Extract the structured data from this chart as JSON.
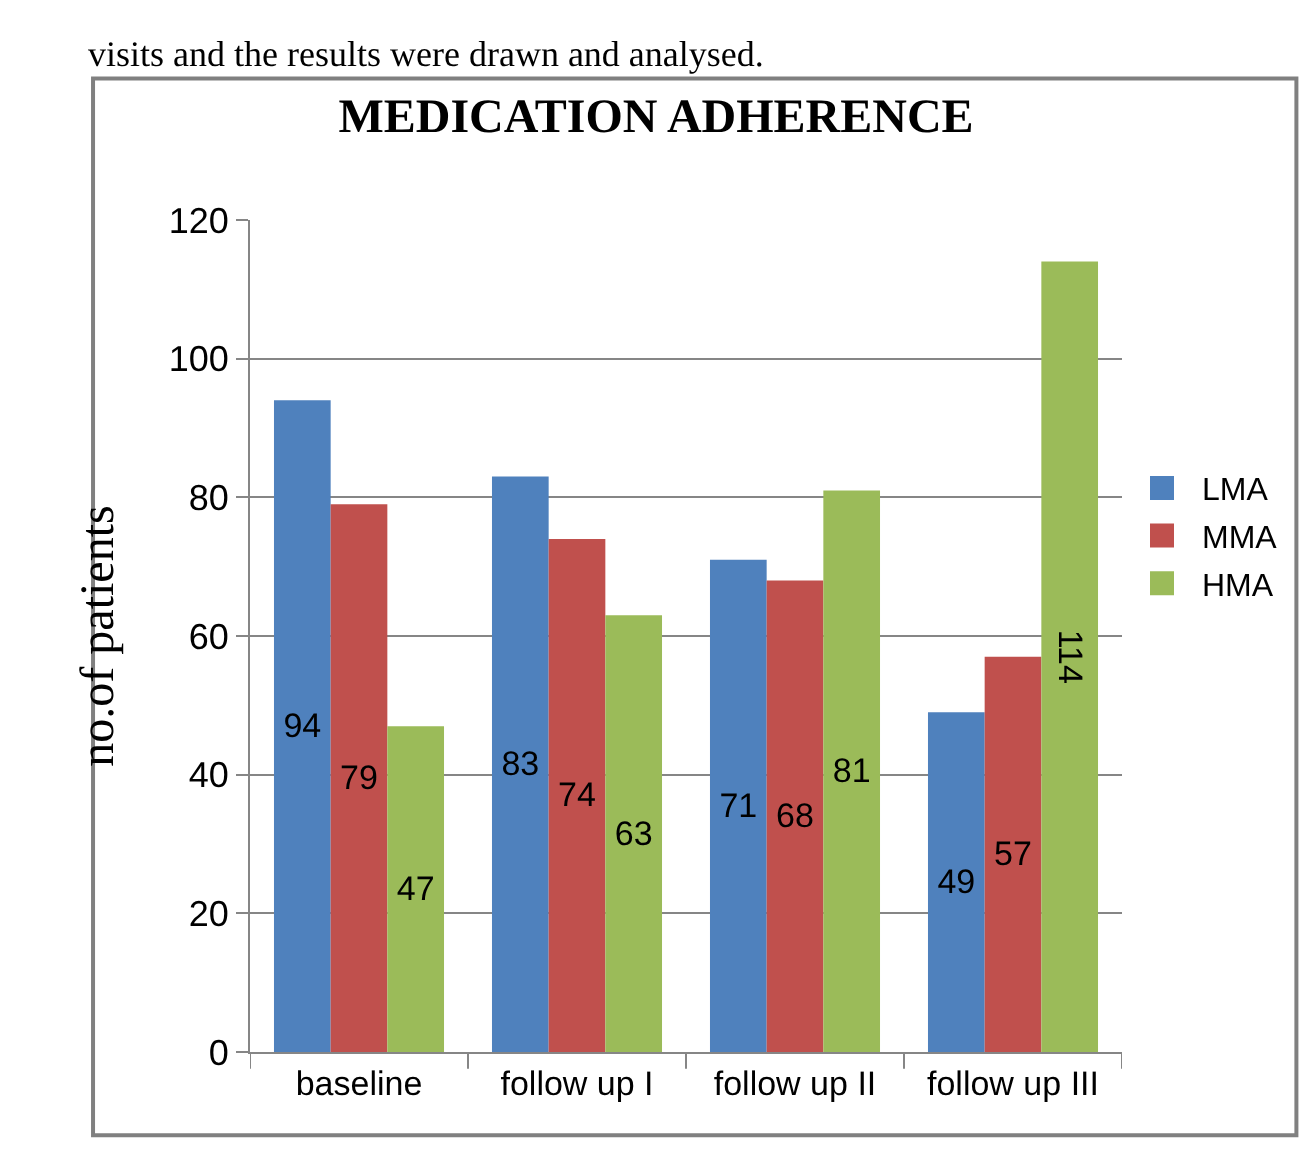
{
  "chart_data": {
    "type": "bar",
    "title": "MEDICATION ADHERENCE",
    "ylabel": "no.of patients",
    "annotations": [
      "visits and the results were drawn and analysed."
    ],
    "categories": [
      "baseline",
      "follow up I",
      "follow up II",
      "follow up III"
    ],
    "series": [
      {
        "name": "LMA",
        "color": "#4f81bd",
        "values": [
          94,
          83,
          71,
          49
        ]
      },
      {
        "name": "MMA",
        "color": "#c0504d",
        "values": [
          79,
          74,
          68,
          57
        ]
      },
      {
        "name": "HMA",
        "color": "#9bbb59",
        "values": [
          47,
          63,
          81,
          114
        ]
      }
    ],
    "ylim": [
      0,
      120
    ],
    "yticks": [
      0,
      20,
      40,
      60,
      80,
      100,
      120
    ],
    "grid": "y",
    "legend": "right",
    "data_labels": true
  }
}
